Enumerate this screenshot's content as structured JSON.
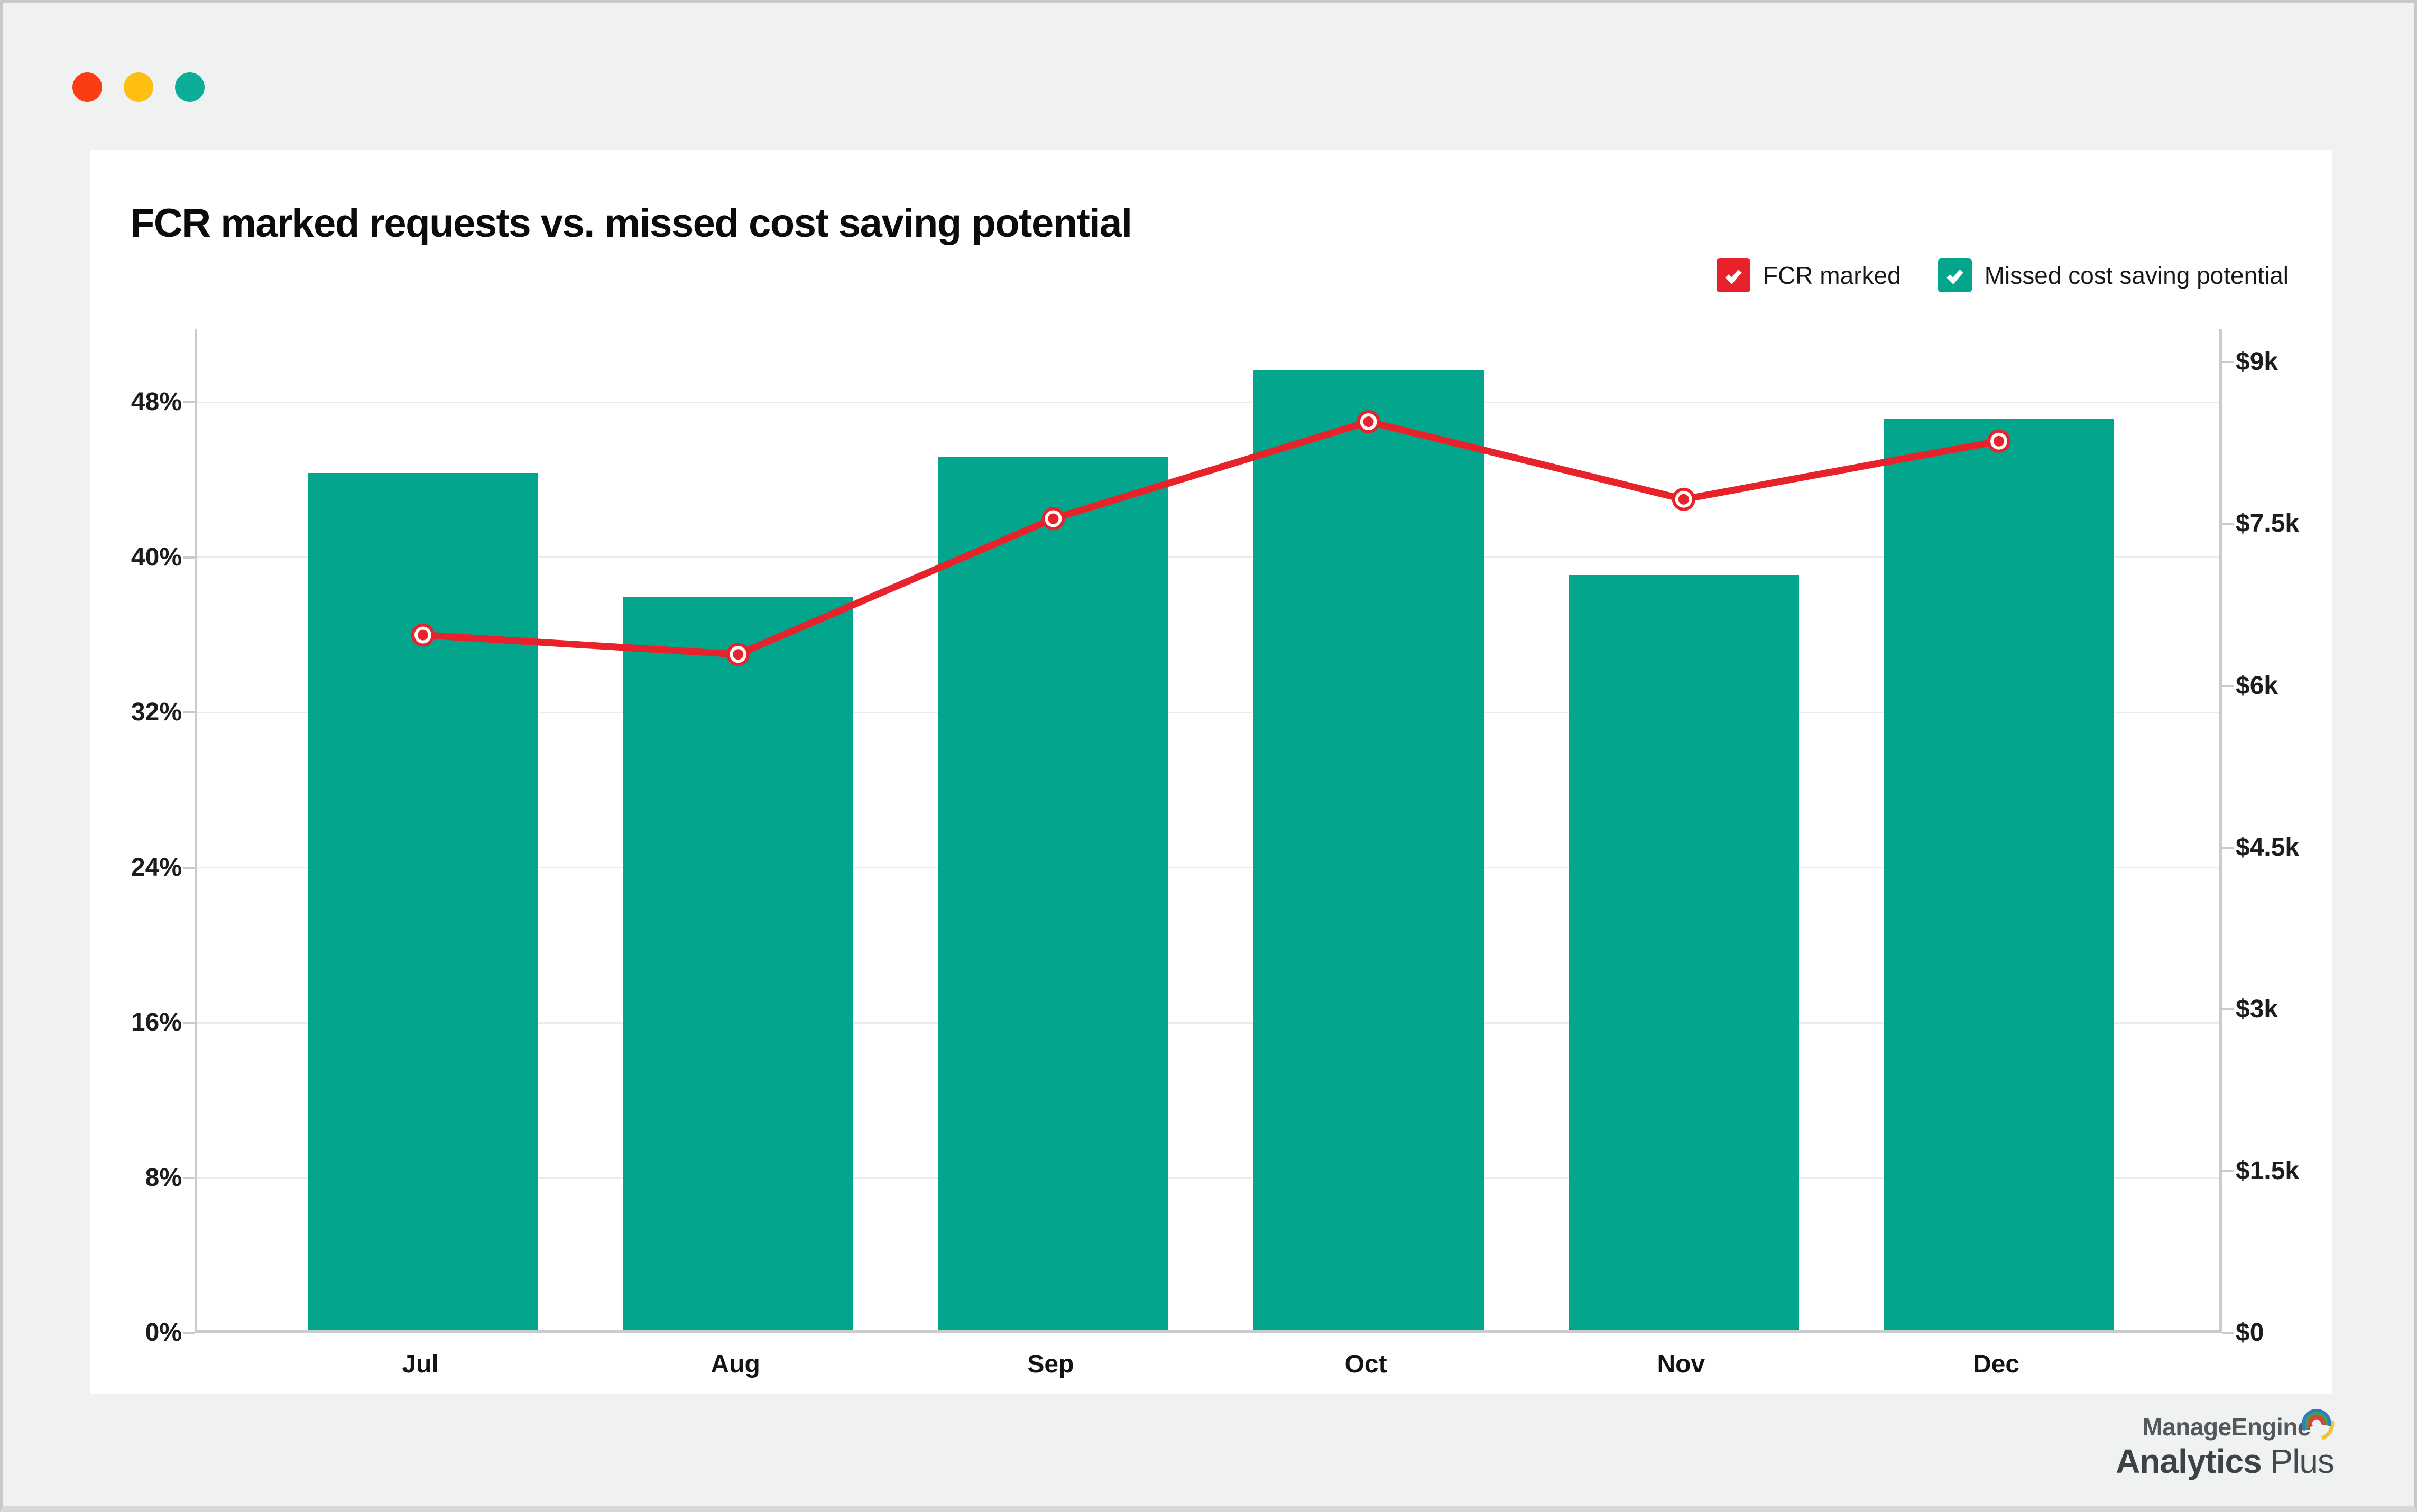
{
  "window": {
    "controls": [
      {
        "name": "close",
        "color": "#fb3e11"
      },
      {
        "name": "minimize",
        "color": "#ffbe12"
      },
      {
        "name": "zoom",
        "color": "#0cae99"
      }
    ]
  },
  "chart": {
    "title": "FCR marked requests vs. missed cost saving potential",
    "legend": [
      {
        "label": "FCR marked",
        "color": "#e8222b",
        "checked": true
      },
      {
        "label": "Missed cost saving potential",
        "color": "#03a58d",
        "checked": true
      }
    ],
    "chart_data": {
      "type": "combo",
      "categories": [
        "Jul",
        "Aug",
        "Sep",
        "Oct",
        "Nov",
        "Dec"
      ],
      "series": [
        {
          "name": "FCR marked",
          "type": "line",
          "y_axis": "left",
          "unit": "percent",
          "color": "#e8222b",
          "values": [
            36,
            35,
            42,
            47,
            43,
            46
          ]
        },
        {
          "name": "Missed cost saving potential",
          "type": "bar",
          "y_axis": "right",
          "unit": "usd",
          "color": "#03a58d",
          "values": [
            7950,
            6800,
            8100,
            8900,
            7000,
            8450
          ]
        }
      ],
      "left_axis": {
        "unit": "%",
        "tick_values": [
          0,
          8,
          16,
          24,
          32,
          40,
          48
        ],
        "tick_labels": [
          "0%",
          "8%",
          "16%",
          "24%",
          "32%",
          "40%",
          "48%"
        ],
        "min": 0,
        "range_top_value": 51.8
      },
      "right_axis": {
        "unit": "$",
        "tick_values": [
          0,
          1500,
          3000,
          4500,
          6000,
          7500,
          9000
        ],
        "tick_labels": [
          "$0",
          "$1.5k",
          "$3k",
          "$4.5k",
          "$6k",
          "$7.5k",
          "$9k"
        ],
        "min": 0,
        "range_top_value": 9310
      },
      "grid": "horizontal-left-axis-ticks",
      "legend_position": "top-right"
    }
  },
  "footer": {
    "brand_line1": "ManageEngine",
    "brand_line2_bold": "Analytics",
    "brand_line2_regular": "Plus"
  }
}
